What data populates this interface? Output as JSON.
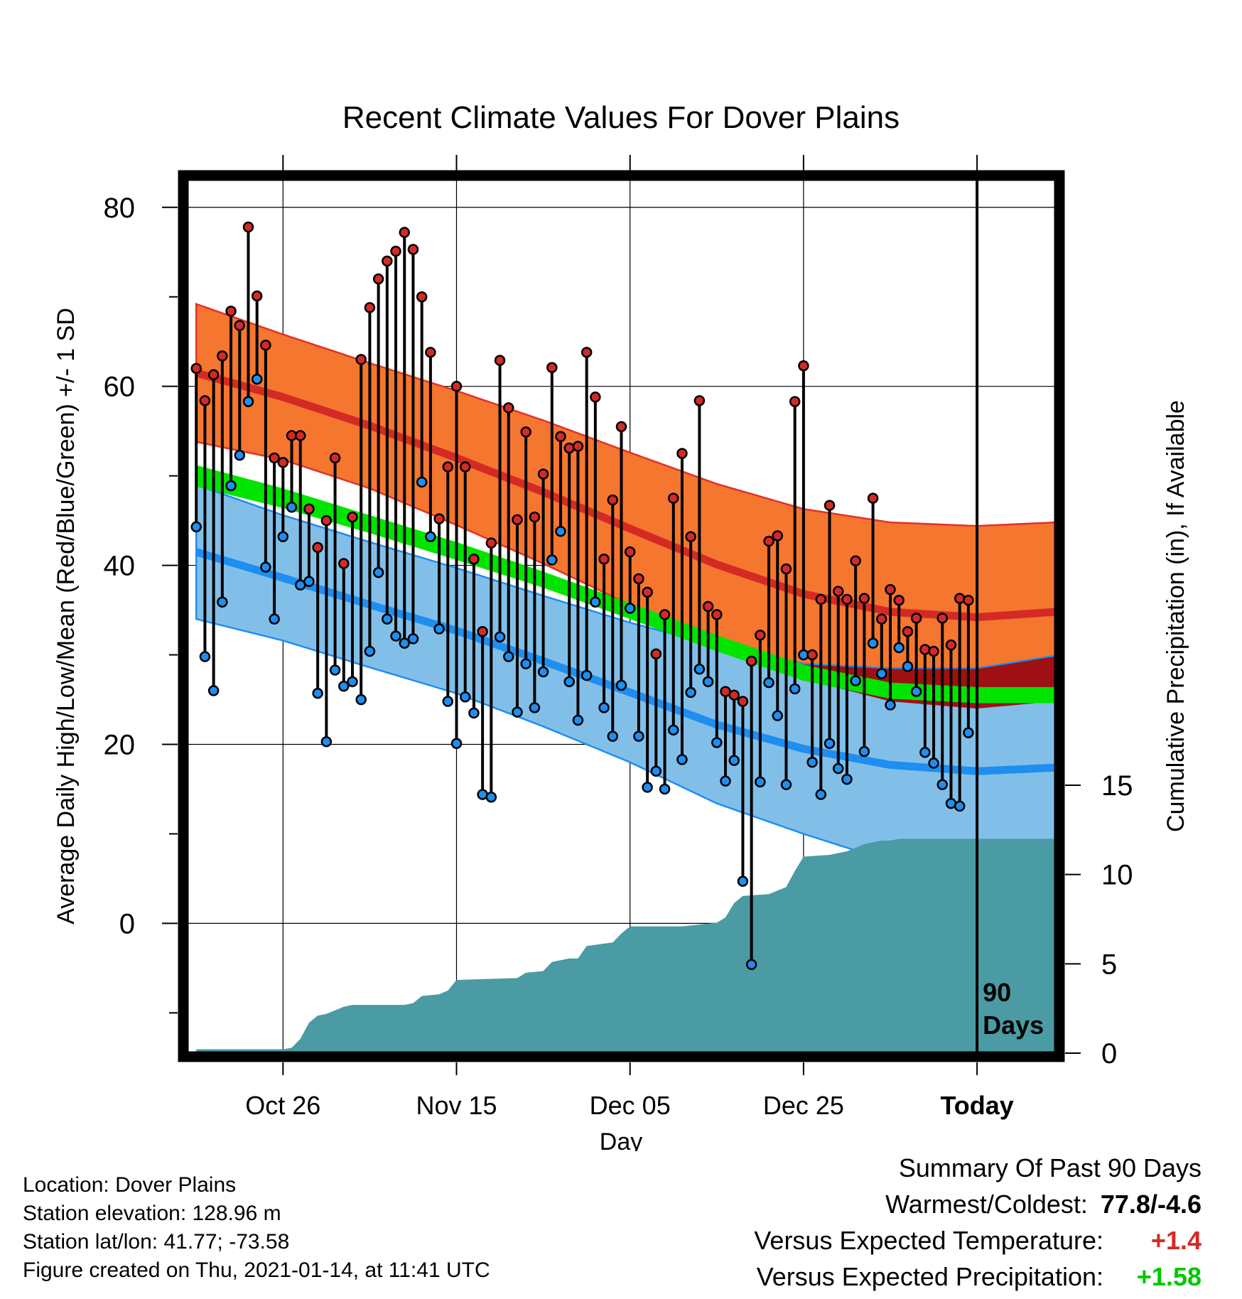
{
  "colors": {
    "high_band": "#f5762e",
    "high_band_edge": "#e0322a",
    "high_mean": "#d42a26",
    "low_band": "#82bfe8",
    "low_band_edge": "#1e8ef0",
    "low_mean": "#1e8ef0",
    "overlap": "#9e1013",
    "mean_band": "#00e400",
    "precip": "#4a9ba4",
    "high_point": "#d42a26",
    "low_point": "#1e8ef0",
    "warm_text": "#d42a26",
    "precip_text": "#00c800"
  },
  "chart_data": {
    "type": "line",
    "title": "Recent Climate Values For Dover Plains",
    "xlabel": "Day",
    "ylabel": "Average Daily High/Low/Mean (Red/Blue/Green) +/- 1 SD",
    "y2label": "Cumulative Precipitation (in), If Available",
    "ylim": [
      -14.5,
      83
    ],
    "y2lim": [
      0,
      15
    ],
    "xlim": [
      -91,
      9
    ],
    "y_ticks": [
      "80",
      "60",
      "40",
      "20",
      "0"
    ],
    "y2_ticks": [
      "15",
      "10",
      "5",
      "0"
    ],
    "x_ticks": [
      "Oct 26",
      "Nov 15",
      "Dec 05",
      "Dec 25",
      "Today"
    ],
    "x_tick_days": [
      -80,
      -60,
      -40,
      -20,
      0
    ],
    "today_marker_label": [
      "90",
      "Days"
    ],
    "normals_days": [
      -90,
      -80,
      -70,
      -60,
      -50,
      -40,
      -30,
      -20,
      -10,
      0,
      9
    ],
    "normal_high": [
      61.5,
      58.8,
      55.6,
      52.0,
      48.2,
      44.1,
      40.1,
      36.8,
      34.8,
      34.2,
      34.8
    ],
    "normal_high_sd": [
      7.7,
      7.0,
      7.0,
      7.5,
      8.0,
      8.5,
      9.0,
      9.5,
      10.0,
      10.2,
      10.0
    ],
    "normal_low": [
      41.5,
      38.6,
      35.6,
      32.7,
      29.3,
      25.8,
      22.2,
      19.5,
      17.7,
      17.0,
      17.4
    ],
    "normal_low_sd": [
      7.5,
      7.0,
      7.0,
      7.0,
      7.3,
      7.8,
      8.8,
      9.5,
      10.8,
      11.5,
      12.5
    ],
    "normal_mean": [
      50.0,
      47.5,
      44.6,
      41.6,
      38.4,
      34.9,
      31.3,
      28.0,
      26.0,
      25.5,
      25.5
    ],
    "normal_mean_sd": [
      1.2,
      1.1,
      1.0,
      1.0,
      0.9,
      0.9,
      0.9,
      0.9,
      0.9,
      0.9,
      0.9
    ],
    "series": [
      {
        "name": "High",
        "x": [
          -90,
          -89,
          -88,
          -87,
          -86,
          -85,
          -84,
          -83,
          -82,
          -81,
          -80,
          -79,
          -78,
          -77,
          -76,
          -75,
          -74,
          -73,
          -72,
          -71,
          -70,
          -69,
          -68,
          -67,
          -66,
          -65,
          -64,
          -63,
          -62,
          -61,
          -60,
          -59,
          -58,
          -57,
          -56,
          -55,
          -54,
          -53,
          -52,
          -51,
          -50,
          -49,
          -48,
          -47,
          -46,
          -45,
          -44,
          -43,
          -42,
          -41,
          -40,
          -39,
          -38,
          -37,
          -36,
          -35,
          -34,
          -33,
          -32,
          -31,
          -30,
          -29,
          -28,
          -27,
          -26,
          -25,
          -24,
          -23,
          -22,
          -21,
          -20,
          -19,
          -18,
          -17,
          -16,
          -15,
          -14,
          -13,
          -12,
          -11,
          -10,
          -9,
          -8,
          -7,
          -6,
          -5,
          -4,
          -3,
          -2,
          -1
        ],
        "values": [
          62,
          58.4,
          61.3,
          63.4,
          68.4,
          66.8,
          77.8,
          70.1,
          64.6,
          52,
          51.5,
          54.5,
          54.5,
          46.3,
          42,
          45,
          52,
          40.2,
          45.4,
          63,
          68.8,
          72,
          74,
          75.1,
          77.2,
          75.3,
          70,
          63.8,
          45.2,
          51,
          60,
          51,
          40.7,
          32.6,
          42.5,
          62.9,
          57.6,
          45.1,
          54.9,
          45.4,
          50.2,
          62.1,
          54.4,
          53.1,
          53.3,
          63.8,
          58.8,
          40.7,
          47.3,
          55.5,
          41.5,
          38.5,
          37,
          30.1,
          34.5,
          47.5,
          52.5,
          43.2,
          58.4,
          35.4,
          34.5,
          25.9,
          25.5,
          24.8,
          29.3,
          32.2,
          42.7,
          43.3,
          39.6,
          58.3,
          62.3,
          30,
          36.2,
          46.7,
          37.1,
          36.2,
          40.5,
          36.3,
          47.5,
          34,
          37.3,
          36.1,
          32.6,
          34.1,
          30.6,
          30.4,
          34.1,
          31.1,
          36.3,
          36.1
        ]
      },
      {
        "name": "Low",
        "x": [
          -90,
          -89,
          -88,
          -87,
          -86,
          -85,
          -84,
          -83,
          -82,
          -81,
          -80,
          -79,
          -78,
          -77,
          -76,
          -75,
          -74,
          -73,
          -72,
          -71,
          -70,
          -69,
          -68,
          -67,
          -66,
          -65,
          -64,
          -63,
          -62,
          -61,
          -60,
          -59,
          -58,
          -57,
          -56,
          -55,
          -54,
          -53,
          -52,
          -51,
          -50,
          -49,
          -48,
          -47,
          -46,
          -45,
          -44,
          -43,
          -42,
          -41,
          -40,
          -39,
          -38,
          -37,
          -36,
          -35,
          -34,
          -33,
          -32,
          -31,
          -30,
          -29,
          -28,
          -27,
          -26,
          -25,
          -24,
          -23,
          -22,
          -21,
          -20,
          -19,
          -18,
          -17,
          -16,
          -15,
          -14,
          -13,
          -12,
          -11,
          -10,
          -9,
          -8,
          -7,
          -6,
          -5,
          -4,
          -3,
          -2,
          -1
        ],
        "values": [
          44.3,
          29.8,
          26,
          35.9,
          48.9,
          52.3,
          58.3,
          60.8,
          39.8,
          34,
          43.2,
          46.5,
          37.8,
          38.2,
          25.7,
          20.3,
          28.3,
          26.5,
          27,
          25,
          30.4,
          39.2,
          34,
          32.1,
          31.3,
          31.8,
          49.3,
          43.2,
          32.9,
          24.8,
          20.1,
          25.3,
          23.5,
          14.4,
          14.1,
          32,
          29.8,
          23.6,
          29,
          24.1,
          28.1,
          40.6,
          43.8,
          27,
          22.7,
          27.7,
          35.9,
          24.1,
          20.9,
          26.6,
          35.2,
          20.9,
          15.2,
          17,
          15,
          21.6,
          18.3,
          25.8,
          28.4,
          27,
          20.2,
          15.9,
          18.2,
          4.7,
          -4.6,
          15.8,
          26.9,
          23.2,
          15.5,
          26.2,
          30,
          18,
          14.4,
          20.1,
          17.3,
          16.1,
          27.1,
          19.2,
          31.3,
          27.9,
          24.4,
          30.8,
          28.7,
          25.9,
          19.1,
          17.9,
          15.5,
          13.4,
          13.1,
          21.3
        ]
      },
      {
        "name": "Cumulative Precipitation",
        "x": [
          -90,
          -80,
          -79,
          -78,
          -77,
          -76,
          -75,
          -74,
          -73,
          -72,
          -66,
          -65,
          -64,
          -62,
          -61,
          -60,
          -53,
          -52,
          -50,
          -49,
          -47,
          -46,
          -45,
          -42,
          -41,
          -40,
          -34,
          -32,
          -30,
          -29,
          -28,
          -27,
          -24,
          -23,
          -22,
          -21,
          -20,
          -17,
          -15,
          -14,
          -13,
          -12,
          -11,
          -10,
          -9,
          9
        ],
        "values": [
          0.22,
          0.22,
          0.3,
          0.8,
          1.7,
          2.1,
          2.2,
          2.4,
          2.6,
          2.7,
          2.7,
          2.8,
          3.2,
          3.3,
          3.5,
          4.1,
          4.2,
          4.5,
          4.6,
          5.1,
          5.3,
          5.3,
          6.0,
          6.2,
          6.7,
          7.1,
          7.1,
          7.2,
          7.3,
          7.6,
          8.4,
          8.8,
          8.9,
          9.1,
          9.3,
          10.2,
          11.0,
          11.1,
          11.3,
          11.5,
          11.7,
          11.8,
          11.9,
          11.9,
          12.0,
          12.0
        ]
      }
    ]
  },
  "info": {
    "location": "Location: Dover Plains",
    "elevation": "Station elevation: 128.96 m",
    "latlon": "Station lat/lon: 41.77; -73.58",
    "created": "Figure created on Thu, 2021-01-14, at 11:41 UTC"
  },
  "summary": {
    "heading": "Summary Of Past 90 Days",
    "warmest_label": "Warmest/Coldest:",
    "warmest_value": "77.8/-4.6",
    "temp_label": "Versus Expected Temperature:",
    "temp_value": "+1.4",
    "precip_label": "Versus Expected Precipitation:",
    "precip_value": "+1.58"
  }
}
